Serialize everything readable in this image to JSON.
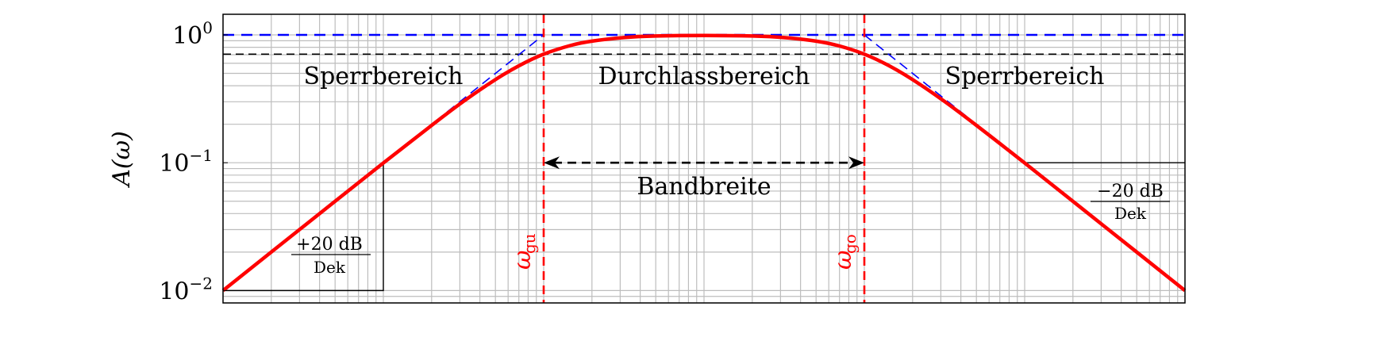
{
  "chart_data": {
    "type": "line",
    "title": "",
    "xlabel": "",
    "ylabel": "A(ω)",
    "x_scale": "log",
    "y_scale": "log",
    "xlim": [
      0.01,
      10000
    ],
    "ylim": [
      0.008,
      1.45
    ],
    "grid": true,
    "y_ticks": [
      {
        "value": 1,
        "base": "10",
        "exp": "0"
      },
      {
        "value": 0.1,
        "base": "10",
        "exp": "−1"
      },
      {
        "value": 0.01,
        "base": "10",
        "exp": "−2"
      }
    ],
    "series": [
      {
        "role": "frequency response",
        "color": "#ff0000",
        "style": "solid",
        "x": [
          0.01,
          0.0316,
          0.1,
          0.2,
          0.316,
          0.5,
          0.7,
          1,
          1.5,
          2,
          3.16,
          5,
          10,
          20,
          31.6,
          50,
          70,
          100,
          140,
          200,
          316,
          500,
          1000,
          3162,
          10000
        ],
        "y": [
          0.01,
          0.0316,
          0.0995,
          0.196,
          0.302,
          0.447,
          0.573,
          0.707,
          0.832,
          0.894,
          0.953,
          0.98,
          0.99,
          0.98,
          0.953,
          0.894,
          0.819,
          0.707,
          0.581,
          0.447,
          0.302,
          0.196,
          0.0995,
          0.0316,
          0.01
        ]
      },
      {
        "role": "asymptotes",
        "color": "#0000ff",
        "style": "dashed",
        "segments": [
          {
            "x": [
              0.01,
              1
            ],
            "y": [
              0.01,
              1
            ]
          },
          {
            "x": [
              0.01,
              10000
            ],
            "y": [
              1,
              1
            ]
          },
          {
            "x": [
              100,
              10000
            ],
            "y": [
              1,
              0.01
            ]
          }
        ]
      }
    ],
    "reference_lines": {
      "minus_3db": {
        "y": 0.707,
        "color": "#000000",
        "style": "dashed"
      },
      "omega_gu": {
        "x": 1,
        "color": "#ff0000",
        "style": "dashed",
        "label_base": "ω",
        "label_sub": "gu"
      },
      "omega_go": {
        "x": 100,
        "color": "#ff0000",
        "style": "dashed",
        "label_base": "ω",
        "label_sub": "go"
      }
    },
    "annotations": {
      "stopband_left": "Sperrbereich",
      "passband": "Durchlassbereich",
      "stopband_right": "Sperrbereich",
      "bandwidth": "Bandbreite",
      "slope_left_num": "+20 dB",
      "slope_left_den": "Dek",
      "slope_right_num": "−20 dB",
      "slope_right_den": "Dek"
    }
  }
}
